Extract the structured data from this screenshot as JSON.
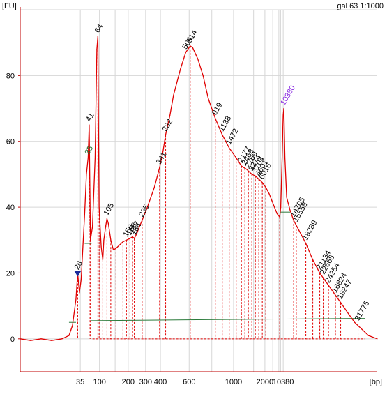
{
  "chart_data": {
    "type": "line",
    "title": "gal 63 1:1000",
    "ylabel": "[FU]",
    "xlabel": "[bp]",
    "ylim": [
      -10,
      100
    ],
    "yticks": [
      0,
      20,
      40,
      60,
      80
    ],
    "xticks": [
      "35",
      "100",
      "150",
      "200",
      "300",
      "400",
      "500",
      "700",
      "1000",
      "1500",
      "2000",
      "3000",
      "4000",
      "7000",
      "10380"
    ],
    "xtick_labels": [
      "35",
      "100",
      "200",
      "300",
      "400",
      "600",
      "1000",
      "2000",
      "10380"
    ],
    "grid": true,
    "colors": {
      "trace": "#e00000",
      "axis": "#c00000",
      "grid": "#d6d6d6",
      "baseline": "#2a7a3a",
      "lower_marker": "#1a6b2a",
      "upper_marker": "#8a2be2",
      "triangle": "#1a2a9a"
    },
    "series": [
      {
        "points": [
          [
            -8,
            0
          ],
          [
            -2,
            -0.5
          ],
          [
            4,
            0
          ],
          [
            10,
            -0.5
          ],
          [
            16,
            0
          ],
          [
            20,
            1
          ],
          [
            22,
            4
          ],
          [
            24,
            12
          ],
          [
            25,
            20
          ],
          [
            26,
            14
          ],
          [
            27,
            18
          ],
          [
            29,
            38
          ],
          [
            30,
            50
          ],
          [
            31,
            55
          ],
          [
            31.6,
            65
          ],
          [
            32.3,
            30
          ],
          [
            33.5,
            34
          ],
          [
            35,
            55
          ],
          [
            36,
            88
          ],
          [
            36.6,
            92
          ],
          [
            37.3,
            40
          ],
          [
            38.5,
            28
          ],
          [
            39.4,
            24
          ],
          [
            40,
            30
          ],
          [
            41,
            34
          ],
          [
            41.8,
            36.5
          ],
          [
            42.6,
            35
          ],
          [
            44,
            30
          ],
          [
            45.5,
            27
          ],
          [
            47,
            27.5
          ],
          [
            49,
            28.5
          ],
          [
            51,
            29.5
          ],
          [
            53,
            30
          ],
          [
            55,
            30.5
          ],
          [
            56.5,
            31
          ],
          [
            57.5,
            30.5
          ],
          [
            59,
            32
          ],
          [
            60,
            33.5
          ],
          [
            62,
            36
          ],
          [
            65,
            40
          ],
          [
            69,
            46
          ],
          [
            72,
            52
          ],
          [
            74,
            57
          ],
          [
            75.5,
            62
          ],
          [
            78,
            68
          ],
          [
            80,
            74
          ],
          [
            84,
            82
          ],
          [
            87,
            87
          ],
          [
            89.6,
            89
          ],
          [
            91,
            88.5
          ],
          [
            94,
            85
          ],
          [
            97,
            80
          ],
          [
            100,
            73
          ],
          [
            104,
            67
          ],
          [
            108,
            62
          ],
          [
            112,
            58
          ],
          [
            116,
            55
          ],
          [
            119,
            52.5
          ],
          [
            122,
            51.5
          ],
          [
            125,
            50
          ],
          [
            127,
            49.5
          ],
          [
            129,
            48.5
          ],
          [
            131,
            47.5
          ],
          [
            133,
            46
          ],
          [
            135,
            44
          ],
          [
            136.5,
            42
          ],
          [
            138,
            40
          ],
          [
            139.5,
            38
          ],
          [
            141,
            37
          ],
          [
            141.6,
            40
          ],
          [
            142.4,
            55
          ],
          [
            143,
            68
          ],
          [
            143.4,
            70
          ],
          [
            144,
            55
          ],
          [
            145,
            43
          ],
          [
            147,
            39
          ],
          [
            149,
            36
          ],
          [
            152,
            33
          ],
          [
            156,
            29
          ],
          [
            160,
            24
          ],
          [
            164,
            20
          ],
          [
            168,
            17
          ],
          [
            172,
            14
          ],
          [
            176,
            11
          ],
          [
            180,
            8
          ],
          [
            184,
            5
          ],
          [
            188,
            3
          ],
          [
            192,
            1
          ],
          [
            197,
            0
          ]
        ]
      }
    ],
    "peaks": [
      {
        "label": "26",
        "x": 25,
        "y": 20
      },
      {
        "label": "35",
        "x": 31,
        "y": 55,
        "marker": "lower"
      },
      {
        "label": "41",
        "x": 31.6,
        "y": 65
      },
      {
        "label": "64",
        "x": 36.6,
        "y": 92
      },
      {
        "label": "105",
        "x": 41.8,
        "y": 36.5
      },
      {
        "label": "156",
        "x": 53,
        "y": 30
      },
      {
        "label": "166",
        "x": 55,
        "y": 30.5
      },
      {
        "label": "177",
        "x": 56.5,
        "y": 31
      },
      {
        "label": "184",
        "x": 57.5,
        "y": 30.5
      },
      {
        "label": "235",
        "x": 62,
        "y": 36
      },
      {
        "label": "341",
        "x": 72,
        "y": 52
      },
      {
        "label": "382",
        "x": 75.5,
        "y": 62
      },
      {
        "label": "504",
        "x": 87,
        "y": 87
      },
      {
        "label": "514",
        "x": 89.6,
        "y": 89
      },
      {
        "label": "919",
        "x": 104,
        "y": 67
      },
      {
        "label": "1138",
        "x": 108,
        "y": 62
      },
      {
        "label": "1472",
        "x": 112,
        "y": 58
      },
      {
        "label": "2177",
        "x": 119,
        "y": 52.5
      },
      {
        "label": "2468",
        "x": 121,
        "y": 51.8
      },
      {
        "label": "2769",
        "x": 123,
        "y": 51
      },
      {
        "label": "3274",
        "x": 125,
        "y": 50
      },
      {
        "label": "3704",
        "x": 127,
        "y": 49.5
      },
      {
        "label": "4601",
        "x": 129,
        "y": 48.5
      },
      {
        "label": "6016",
        "x": 131,
        "y": 47.5
      },
      {
        "label": "10380",
        "x": 143.4,
        "y": 70,
        "marker": "upper"
      },
      {
        "label": "14705",
        "x": 149,
        "y": 36
      },
      {
        "label": "15558",
        "x": 150.5,
        "y": 34.5
      },
      {
        "label": "18289",
        "x": 156,
        "y": 29
      },
      {
        "label": "21134",
        "x": 164,
        "y": 20
      },
      {
        "label": "22668",
        "x": 166,
        "y": 18.5
      },
      {
        "label": "24254",
        "x": 169,
        "y": 16
      },
      {
        "label": "16824",
        "x": 173,
        "y": 13
      },
      {
        "label": "18247",
        "x": 176,
        "y": 11
      },
      {
        "label": "31775",
        "x": 186,
        "y": 4.5
      }
    ]
  }
}
